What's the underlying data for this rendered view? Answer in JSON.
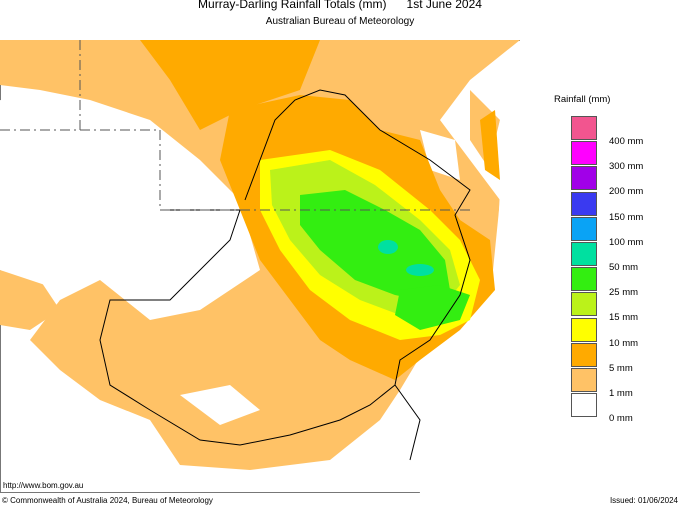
{
  "header": {
    "title": "Murray-Darling Rainfall Totals (mm)      1st June 2024",
    "subtitle": "Australian Bureau of Meteorology"
  },
  "legend": {
    "title": "Rainfall (mm)",
    "colors": [
      "#f2558f",
      "#ff00ff",
      "#a100e8",
      "#3a3af0",
      "#0aa3f5",
      "#00e0a0",
      "#33ee11",
      "#bbf21a",
      "#ffff00",
      "#ffaa00",
      "#ffc266",
      "#ffffff"
    ],
    "labels": [
      "400 mm",
      "300 mm",
      "200 mm",
      "150 mm",
      "100 mm",
      "50 mm",
      "25 mm",
      "15 mm",
      "10 mm",
      "5 mm",
      "1 mm",
      "0 mm"
    ]
  },
  "footer": {
    "url": "http://www.bom.gov.au",
    "copyright": "© Commonwealth of Australia 2024, Bureau of Meteorology",
    "issued": "Issued: 01/06/2024"
  }
}
